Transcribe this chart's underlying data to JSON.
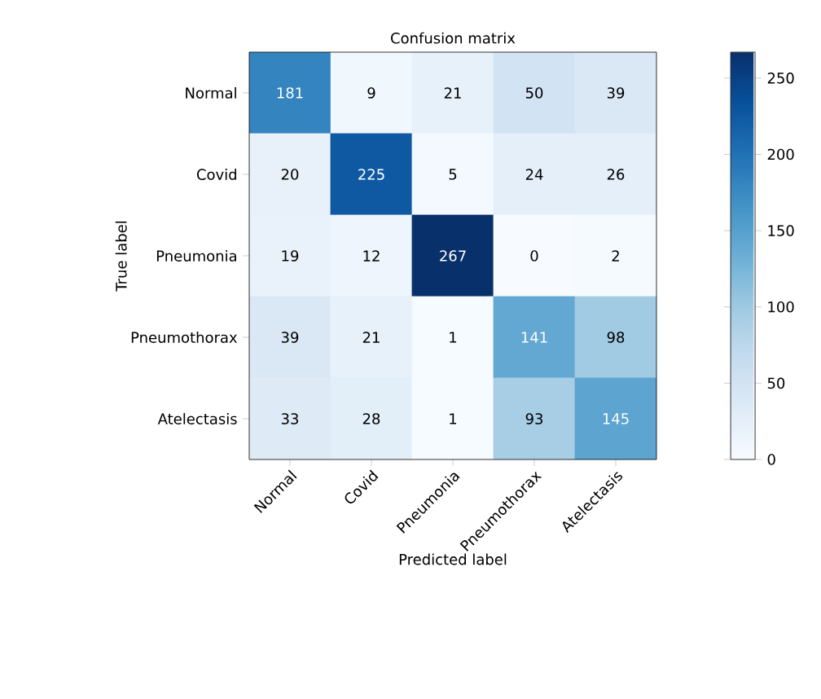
{
  "chart_data": {
    "type": "heatmap",
    "title": "Confusion matrix",
    "xlabel": "Predicted label",
    "ylabel": "True label",
    "categories": [
      "Normal",
      "Covid",
      "Pneumonia",
      "Pneumothorax",
      "Atelectasis"
    ],
    "y_categories": [
      "Normal",
      "Covid",
      "Pneumonia",
      "Pneumothorax",
      "Atelectasis"
    ],
    "cells": [
      [
        181,
        9,
        21,
        50,
        39
      ],
      [
        20,
        225,
        5,
        24,
        26
      ],
      [
        19,
        12,
        267,
        0,
        2
      ],
      [
        39,
        21,
        1,
        141,
        98
      ],
      [
        33,
        28,
        1,
        93,
        145
      ]
    ],
    "clim": [
      0,
      267
    ],
    "cticks": [
      0,
      50,
      100,
      150,
      200,
      250
    ],
    "data_labels": true
  }
}
